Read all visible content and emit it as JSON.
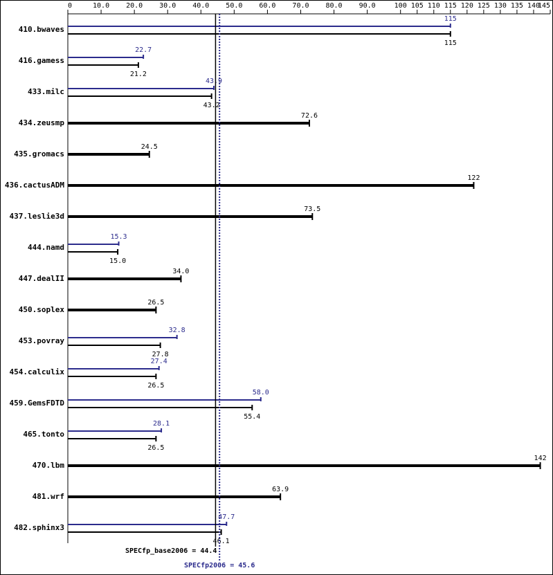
{
  "chart_data": {
    "type": "bar",
    "categories": [
      "410.bwaves",
      "416.gamess",
      "433.milc",
      "434.zeusmp",
      "435.gromacs",
      "436.cactusADM",
      "437.leslie3d",
      "444.namd",
      "447.dealII",
      "450.soplex",
      "453.povray",
      "454.calculix",
      "459.GemsFDTD",
      "465.tonto",
      "470.lbm",
      "481.wrf",
      "482.sphinx3"
    ],
    "series": [
      {
        "color": "#2b2b8c",
        "values": [
          115,
          22.7,
          43.9,
          null,
          null,
          null,
          null,
          15.3,
          null,
          null,
          32.8,
          27.4,
          58.0,
          28.1,
          null,
          null,
          47.7
        ],
        "value_labels": [
          "115",
          "22.7",
          "43.9",
          null,
          null,
          null,
          null,
          "15.3",
          null,
          null,
          "32.8",
          "27.4",
          "58.0",
          "28.1",
          null,
          null,
          "47.7"
        ]
      },
      {
        "color": "#000000",
        "values": [
          115,
          21.2,
          43.2,
          72.6,
          24.5,
          122,
          73.5,
          15.0,
          34.0,
          26.5,
          27.8,
          26.5,
          55.4,
          26.5,
          142,
          63.9,
          46.1
        ],
        "value_labels": [
          "115",
          "21.2",
          "43.2",
          "72.6",
          "24.5",
          "122",
          "73.5",
          "15.0",
          "34.0",
          "26.5",
          "27.8",
          "26.5",
          "55.4",
          "26.5",
          "142",
          "63.9",
          "46.1"
        ]
      }
    ],
    "xlim": [
      0,
      145
    ],
    "xticks": [
      0,
      {
        "value": 10,
        "label": "10.0"
      },
      {
        "value": 20,
        "label": "20.0"
      },
      {
        "value": 30,
        "label": "30.0"
      },
      {
        "value": 40,
        "label": "40.0"
      },
      {
        "value": 50,
        "label": "50.0"
      },
      {
        "value": 60,
        "label": "60.0"
      },
      {
        "value": 70,
        "label": "70.0"
      },
      {
        "value": 80,
        "label": "80.0"
      },
      {
        "value": 90,
        "label": "90.0"
      },
      100,
      105,
      110,
      115,
      120,
      125,
      130,
      135,
      140,
      145
    ],
    "reference_lines": [
      {
        "label": "SPECfp_base2006 = 44.4",
        "value": 44.4,
        "color": "#000000",
        "style": "solid"
      },
      {
        "label": "SPECfp2006 = 45.6",
        "value": 45.6,
        "color": "#2b2b8c",
        "style": "dotted"
      }
    ]
  }
}
